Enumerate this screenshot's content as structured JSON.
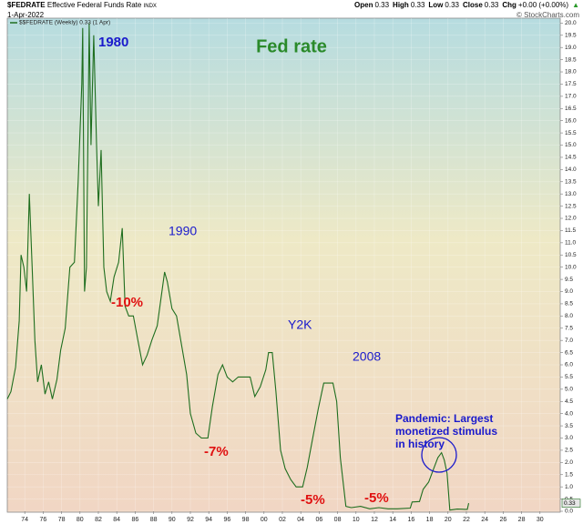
{
  "chart_data": {
    "type": "line",
    "header": {
      "symbol": "$FEDRATE",
      "name": "Effective Federal Funds Rate",
      "exchange": "INDX",
      "date": "1-Apr-2022",
      "quote": [
        {
          "label": "Open",
          "value": "0.33"
        },
        {
          "label": "High",
          "value": "0.33"
        },
        {
          "label": "Low",
          "value": "0.33"
        },
        {
          "label": "Close",
          "value": "0.33"
        },
        {
          "label": "Chg",
          "value": "+0.00 (+0.00%)"
        }
      ],
      "source": "© StockCharts.com"
    },
    "title": "Fed rate",
    "last_value": 0.33,
    "annotations": [
      {
        "text": "1980",
        "color": "#1a1acc"
      },
      {
        "text": "1990",
        "color": "#1a1acc"
      },
      {
        "text": "-10%",
        "color": "#e01010"
      },
      {
        "text": "Y2K",
        "color": "#1a1acc"
      },
      {
        "text": "2008",
        "color": "#1a1acc"
      },
      {
        "text": "-7%",
        "color": "#e01010"
      },
      {
        "text": "-5%",
        "color": "#e01010"
      },
      {
        "text": "-5%",
        "color": "#e01010"
      },
      {
        "text": "Pandemic: Largest",
        "color": "#1a1acc"
      },
      {
        "text": "monetized stimulus",
        "color": "#1a1acc"
      },
      {
        "text": "in history",
        "color": "#1a1acc"
      }
    ],
    "x": [
      1972.1,
      1972.5,
      1973.0,
      1973.4,
      1973.6,
      1973.9,
      1974.2,
      1974.5,
      1974.8,
      1975.1,
      1975.4,
      1975.8,
      1976.2,
      1976.6,
      1977.0,
      1977.5,
      1977.9,
      1978.4,
      1978.9,
      1979.4,
      1979.8,
      1980.2,
      1980.3,
      1980.5,
      1980.7,
      1980.9,
      1981.0,
      1981.2,
      1981.5,
      1981.8,
      1982.0,
      1982.3,
      1982.6,
      1982.9,
      1983.3,
      1983.7,
      1984.2,
      1984.6,
      1984.9,
      1985.3,
      1985.8,
      1986.3,
      1986.8,
      1987.3,
      1987.8,
      1988.4,
      1989.2,
      1989.5,
      1990.0,
      1990.5,
      1991.0,
      1991.6,
      1992.0,
      1992.6,
      1993.2,
      1993.9,
      1994.4,
      1995.0,
      1995.5,
      1996.0,
      1996.6,
      1997.2,
      1997.9,
      1998.5,
      1999.0,
      1999.6,
      2000.2,
      2000.5,
      2000.9,
      2001.3,
      2001.8,
      2002.3,
      2002.9,
      2003.5,
      2004.2,
      2004.7,
      2005.3,
      2005.9,
      2006.5,
      2007.5,
      2007.9,
      2008.3,
      2008.9,
      2009.5,
      2010.5,
      2011.5,
      2012.5,
      2013.5,
      2014.5,
      2015.9,
      2016.1,
      2016.9,
      2017.3,
      2017.9,
      2018.4,
      2018.9,
      2019.3,
      2019.6,
      2019.9,
      2020.2,
      2021.0,
      2021.9,
      2022.1,
      2022.25
    ],
    "series": [
      {
        "name": "$$FEDRATE (Weekly) 0.33 (1 Apr)",
        "color": "#1f6e1f",
        "values": [
          4.6,
          4.9,
          5.9,
          7.8,
          10.5,
          10.0,
          9.0,
          13.0,
          10.0,
          7.0,
          5.3,
          6.0,
          4.8,
          5.3,
          4.6,
          5.4,
          6.6,
          7.5,
          10.0,
          10.2,
          13.5,
          17.5,
          19.8,
          9.0,
          10.0,
          16.5,
          20.0,
          15.0,
          19.5,
          15.0,
          12.5,
          14.8,
          10.0,
          9.0,
          8.6,
          9.6,
          10.2,
          11.6,
          8.4,
          8.0,
          8.0,
          7.0,
          6.0,
          6.4,
          7.0,
          7.6,
          9.8,
          9.4,
          8.3,
          8.0,
          6.9,
          5.6,
          4.0,
          3.2,
          3.0,
          3.0,
          4.3,
          5.6,
          6.0,
          5.5,
          5.3,
          5.5,
          5.5,
          5.5,
          4.7,
          5.1,
          5.8,
          6.5,
          6.5,
          4.9,
          2.5,
          1.75,
          1.3,
          1.0,
          1.0,
          1.8,
          3.0,
          4.2,
          5.25,
          5.25,
          4.5,
          2.2,
          0.2,
          0.15,
          0.2,
          0.1,
          0.15,
          0.1,
          0.1,
          0.13,
          0.38,
          0.4,
          0.9,
          1.2,
          1.7,
          2.2,
          2.4,
          2.1,
          1.55,
          0.05,
          0.09,
          0.08,
          0.08,
          0.33
        ]
      }
    ],
    "xlim": [
      1972.1,
      2032.2
    ],
    "xticks": [
      {
        "value": 1974,
        "label": "74"
      },
      {
        "value": 1976,
        "label": "76"
      },
      {
        "value": 1978,
        "label": "78"
      },
      {
        "value": 1980,
        "label": "80"
      },
      {
        "value": 1982,
        "label": "82"
      },
      {
        "value": 1984,
        "label": "84"
      },
      {
        "value": 1986,
        "label": "86"
      },
      {
        "value": 1988,
        "label": "88"
      },
      {
        "value": 1990,
        "label": "90"
      },
      {
        "value": 1992,
        "label": "92"
      },
      {
        "value": 1994,
        "label": "94"
      },
      {
        "value": 1996,
        "label": "96"
      },
      {
        "value": 1998,
        "label": "98"
      },
      {
        "value": 2000,
        "label": "00"
      },
      {
        "value": 2002,
        "label": "02"
      },
      {
        "value": 2004,
        "label": "04"
      },
      {
        "value": 2006,
        "label": "06"
      },
      {
        "value": 2008,
        "label": "08"
      },
      {
        "value": 2010,
        "label": "10"
      },
      {
        "value": 2012,
        "label": "12"
      },
      {
        "value": 2014,
        "label": "14"
      },
      {
        "value": 2016,
        "label": "16"
      },
      {
        "value": 2018,
        "label": "18"
      },
      {
        "value": 2020,
        "label": "20"
      },
      {
        "value": 2022,
        "label": "22"
      },
      {
        "value": 2024,
        "label": "24"
      },
      {
        "value": 2026,
        "label": "26"
      },
      {
        "value": 2028,
        "label": "28"
      },
      {
        "value": 2030,
        "label": "30"
      }
    ],
    "ylim": [
      0,
      20.2
    ],
    "yticks": [
      {
        "value": 0,
        "label": "0.0"
      },
      0.5,
      {
        "value": 1,
        "label": "1.0"
      },
      1.5,
      {
        "value": 2,
        "label": "2.0"
      },
      2.5,
      {
        "value": 3,
        "label": "3.0"
      },
      3.5,
      {
        "value": 4,
        "label": "4.0"
      },
      4.5,
      {
        "value": 5,
        "label": "5.0"
      },
      5.5,
      {
        "value": 6,
        "label": "6.0"
      },
      6.5,
      {
        "value": 7,
        "label": "7.0"
      },
      7.5,
      {
        "value": 8,
        "label": "8.0"
      },
      8.5,
      {
        "value": 9,
        "label": "9.0"
      },
      9.5,
      {
        "value": 10,
        "label": "10.0"
      },
      10.5,
      {
        "value": 11,
        "label": "11.0"
      },
      11.5,
      {
        "value": 12,
        "label": "12.0"
      },
      12.5,
      {
        "value": 13,
        "label": "13.0"
      },
      13.5,
      {
        "value": 14,
        "label": "14.0"
      },
      14.5,
      {
        "value": 15,
        "label": "15.0"
      },
      15.5,
      {
        "value": 16,
        "label": "16.0"
      },
      16.5,
      {
        "value": 17,
        "label": "17.0"
      },
      17.5,
      {
        "value": 18,
        "label": "18.0"
      },
      18.5,
      {
        "value": 19,
        "label": "19.0"
      },
      19.5,
      {
        "value": 20,
        "label": "20.0"
      }
    ],
    "grid": true
  }
}
